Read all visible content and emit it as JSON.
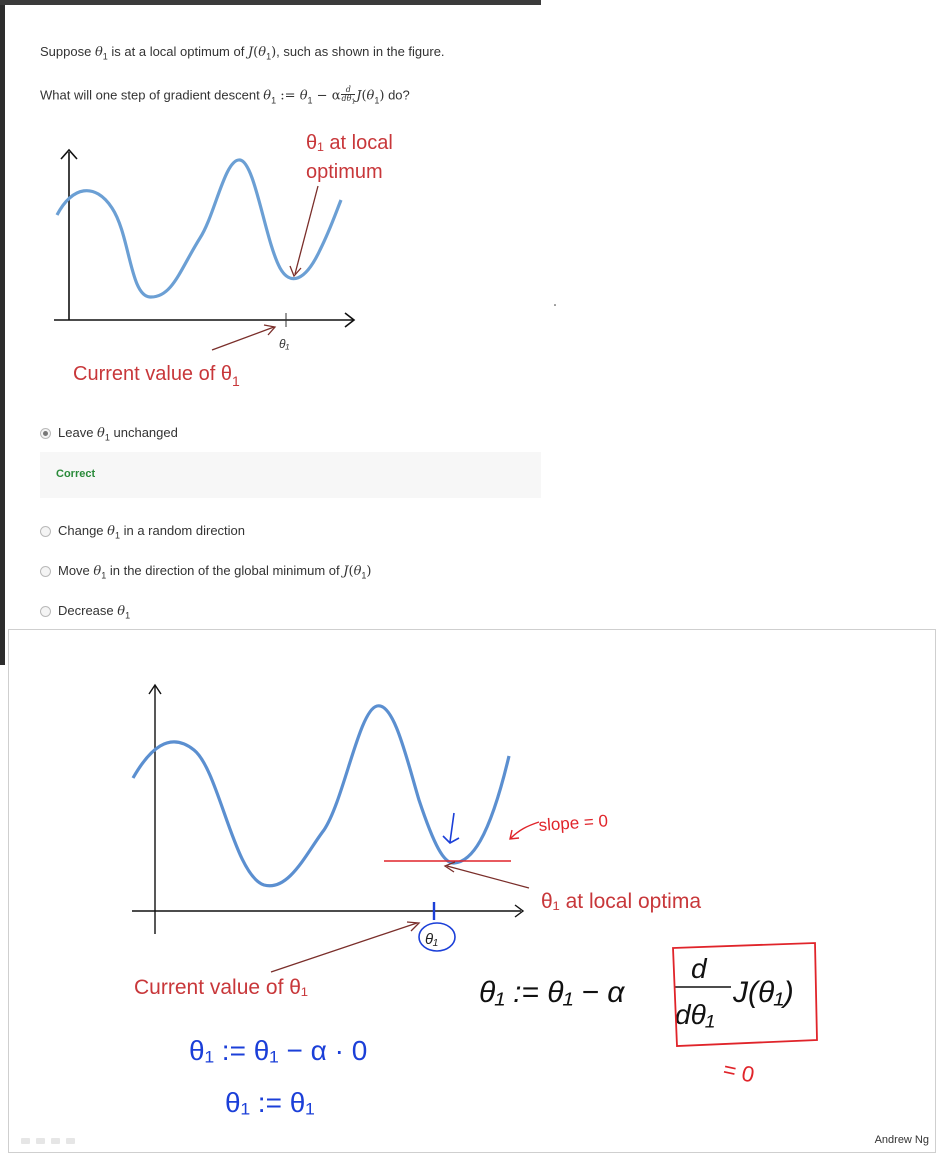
{
  "question": {
    "line1_before": "Suppose ",
    "line1_after": " is at a local optimum of ",
    "line1_end": ", such as shown in the figure.",
    "line2_before": "What will one step of gradient descent ",
    "line2_end": " do?",
    "theta": "θ",
    "sub1": "1",
    "J": "J",
    "open": "(",
    "close": ")",
    "assign": " := ",
    "minus_alpha": " − α",
    "d": "d",
    "dtheta": "dθ"
  },
  "figure": {
    "annotation_top_line1": "θ₁ at local",
    "annotation_top_line2": "optimum",
    "axis_label": "θ₁",
    "current_value_label": "Current value of θ",
    "current_value_sub": "1"
  },
  "options": [
    {
      "before": "Leave ",
      "after": " unchanged",
      "selected": true
    },
    {
      "before": "Change ",
      "after": " in a random direction",
      "selected": false
    },
    {
      "before": "Move ",
      "after": " in the direction of the global minimum of ",
      "selected": false
    },
    {
      "before": "Decrease ",
      "after": "",
      "selected": false
    }
  ],
  "feedback": "Correct",
  "lecture": {
    "slope_note": "slope = 0",
    "local_optima_label": "θ₁ at local optima",
    "axis_label": "θ₁",
    "current_value_label": "Current value of θ₁",
    "update_rule_left": "θ₁ := θ₁ − α",
    "fraction_top": "d",
    "fraction_bottom": "dθ₁",
    "update_rule_right": "J(θ₁)",
    "equals_zero": "= 0",
    "hand_line1": "θ₁ := θ₁ − α · 0",
    "hand_line2": "θ₁ := θ₁",
    "credit": "Andrew Ng"
  },
  "colors": {
    "curve": "#6b9fd4",
    "annotation_red": "#c8373a",
    "arrow_brown": "#7a2e2a",
    "ink_blue": "#1b3fd8",
    "correct_green": "#2a8a3a"
  }
}
